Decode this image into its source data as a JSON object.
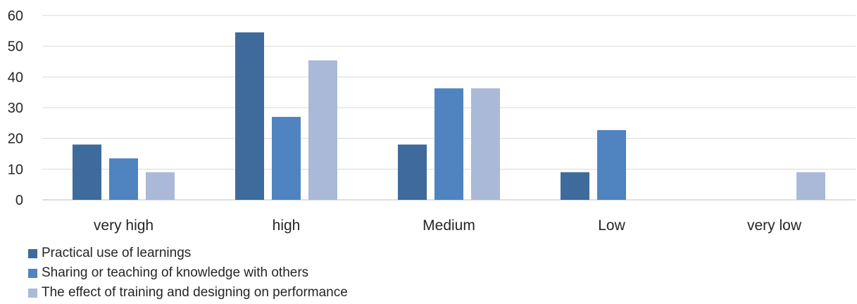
{
  "chart_data": {
    "type": "bar",
    "categories": [
      "very high",
      "high",
      "Medium",
      "Low",
      "very low"
    ],
    "series": [
      {
        "name": "Practical use of learnings",
        "color": "#3f6a9c",
        "values": [
          18,
          54.5,
          18,
          9,
          0
        ]
      },
      {
        "name": "Sharing or teaching of knowledge with others",
        "color": "#4f84c0",
        "values": [
          13.5,
          27,
          36.3,
          22.7,
          0
        ]
      },
      {
        "name": "The effect of training and designing on performance",
        "color": "#aab9d8",
        "values": [
          9,
          45.4,
          36.3,
          0,
          9
        ]
      }
    ],
    "ylim": [
      0,
      60
    ],
    "yticks": [
      0,
      10,
      20,
      30,
      40,
      50,
      60
    ],
    "grid": true,
    "legend_position": "bottom-left"
  }
}
